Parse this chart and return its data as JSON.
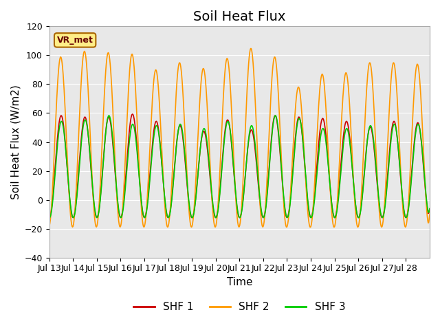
{
  "title": "Soil Heat Flux",
  "xlabel": "Time",
  "ylabel": "Soil Heat Flux (W/m2)",
  "ylim": [
    -40,
    120
  ],
  "yticks": [
    -40,
    -20,
    0,
    20,
    40,
    60,
    80,
    100,
    120
  ],
  "xtick_labels": [
    "Jul 13",
    "Jul 14",
    "Jul 15",
    "Jul 16",
    "Jul 17",
    "Jul 18",
    "Jul 19",
    "Jul 20",
    "Jul 21",
    "Jul 22",
    "Jul 23",
    "Jul 24",
    "Jul 25",
    "Jul 26",
    "Jul 27",
    "Jul 28"
  ],
  "legend_labels": [
    "SHF 1",
    "SHF 2",
    "SHF 3"
  ],
  "legend_colors": [
    "#cc0000",
    "#ff9900",
    "#00cc00"
  ],
  "annotation_text": "VR_met",
  "background_color": "#e8e8e8",
  "shf1_peaks": [
    59,
    58,
    58,
    60,
    55,
    52,
    48,
    56,
    49,
    59,
    58,
    57,
    55,
    51,
    55,
    54
  ],
  "shf2_peaks": [
    100,
    104,
    103,
    102,
    91,
    96,
    92,
    99,
    106,
    100,
    79,
    88,
    89,
    96,
    96,
    95
  ],
  "shf3_peaks": [
    55,
    56,
    59,
    53,
    52,
    53,
    50,
    55,
    52,
    59,
    57,
    50,
    50,
    52,
    53,
    53
  ],
  "shf1_min": -13,
  "shf2_min": -20,
  "shf3_min": -13,
  "n_days": 16,
  "title_fontsize": 14,
  "label_fontsize": 11,
  "tick_fontsize": 9,
  "legend_fontsize": 11
}
